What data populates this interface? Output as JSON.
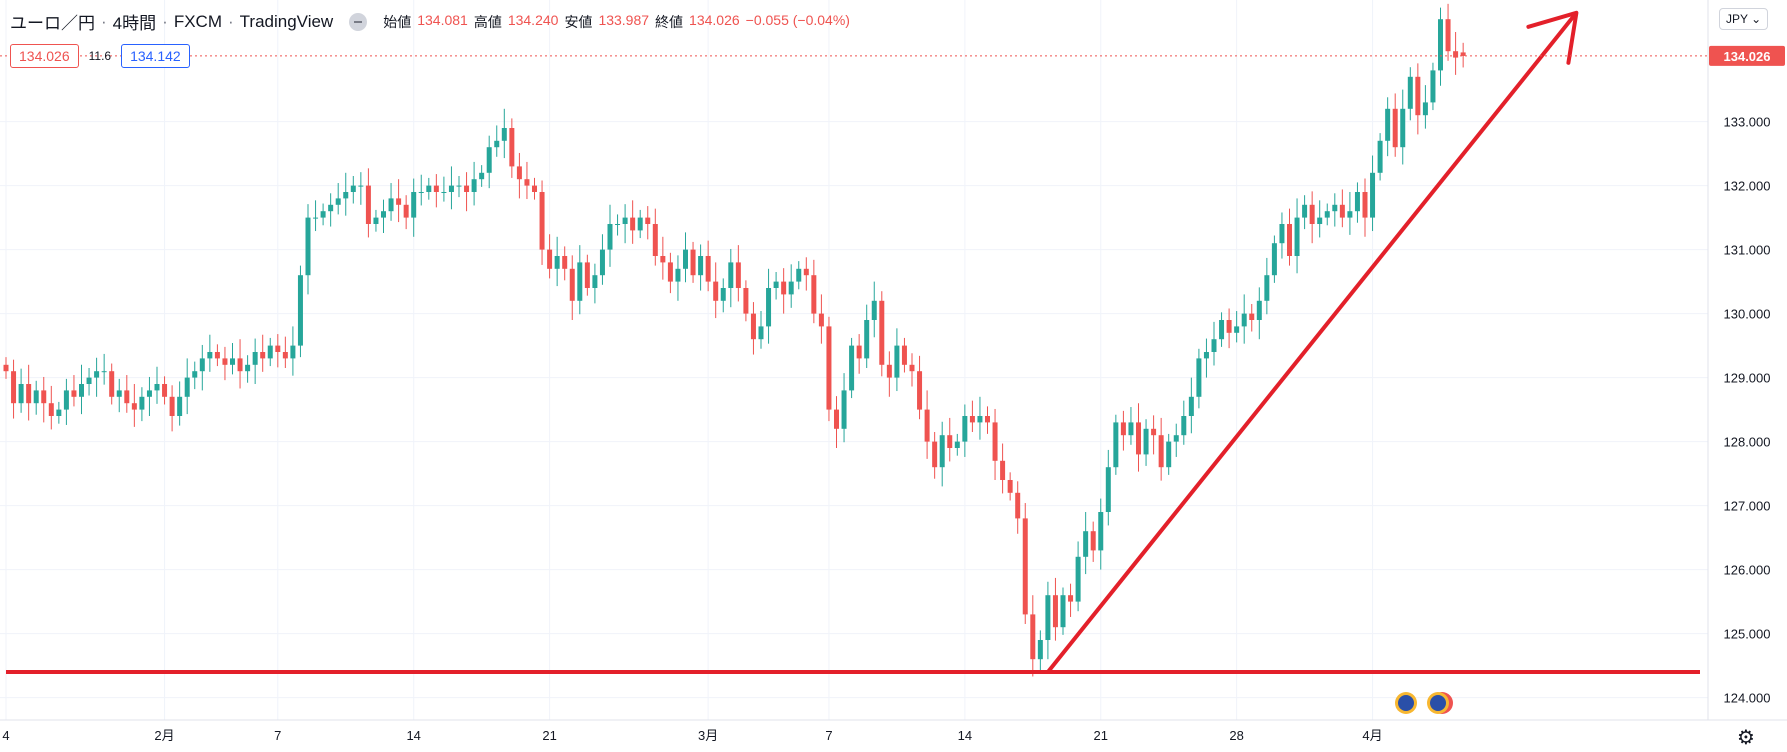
{
  "legend": {
    "symbol": "ユーロ／円",
    "interval": "4時間",
    "exchange": "FXCM",
    "brand": "TradingView",
    "open_label": "始値",
    "open": "134.081",
    "high_label": "高値",
    "high": "134.240",
    "low_label": "安値",
    "low": "133.987",
    "close_label": "終値",
    "close": "134.026",
    "change": "−0.055 (−0.04%)"
  },
  "quote": {
    "sell": "134.026",
    "spread": "11.6",
    "buy": "134.142"
  },
  "currency_button": "JPY",
  "colors": {
    "up": "#26a69a",
    "down": "#ef5350",
    "annotation": "#e3202a",
    "grid": "#f0f3fa"
  },
  "chart_data": {
    "type": "candlestick",
    "ylim": [
      123.65,
      134.9
    ],
    "y_ticks": [
      "124.000",
      "125.000",
      "126.000",
      "127.000",
      "128.000",
      "129.000",
      "130.000",
      "131.000",
      "132.000",
      "133.000"
    ],
    "x_tick_labels": [
      "4",
      "2月",
      "7",
      "14",
      "21",
      "3月",
      "7",
      "14",
      "21",
      "28",
      "4月"
    ],
    "last_price_label": "134.026",
    "series": {
      "name": "EUR/JPY 4h",
      "close": [
        129.1,
        128.6,
        128.9,
        128.6,
        128.8,
        128.6,
        128.4,
        128.5,
        128.8,
        128.7,
        128.9,
        129.0,
        129.1,
        129.1,
        128.7,
        128.8,
        128.6,
        128.5,
        128.7,
        128.8,
        128.9,
        128.7,
        128.4,
        128.7,
        129.0,
        129.1,
        129.3,
        129.4,
        129.3,
        129.2,
        129.3,
        129.1,
        129.2,
        129.4,
        129.3,
        129.5,
        129.4,
        129.3,
        129.5,
        130.6,
        131.5,
        131.5,
        131.6,
        131.7,
        131.8,
        131.9,
        132.0,
        132.0,
        131.4,
        131.5,
        131.6,
        131.8,
        131.7,
        131.5,
        131.9,
        131.9,
        132.0,
        131.9,
        131.9,
        132.0,
        132.0,
        131.9,
        132.1,
        132.2,
        132.6,
        132.7,
        132.9,
        132.3,
        132.1,
        132.0,
        131.9,
        131.0,
        130.7,
        130.9,
        130.7,
        130.2,
        130.8,
        130.4,
        130.6,
        131.0,
        131.4,
        131.4,
        131.5,
        131.3,
        131.5,
        131.4,
        130.9,
        130.8,
        130.5,
        130.7,
        131.0,
        130.6,
        130.9,
        130.5,
        130.2,
        130.4,
        130.8,
        130.4,
        130.0,
        129.6,
        129.8,
        130.4,
        130.5,
        130.3,
        130.5,
        130.7,
        130.6,
        130.0,
        129.8,
        128.5,
        128.2,
        128.8,
        129.5,
        129.3,
        129.9,
        130.2,
        129.2,
        129.0,
        129.5,
        129.2,
        129.1,
        128.5,
        128.0,
        127.6,
        128.1,
        127.9,
        128.0,
        128.4,
        128.3,
        128.4,
        128.3,
        127.7,
        127.4,
        127.2,
        126.8,
        125.3,
        124.6,
        124.9,
        125.6,
        125.1,
        125.6,
        125.5,
        126.2,
        126.6,
        126.3,
        126.9,
        127.6,
        128.3,
        128.1,
        128.3,
        127.8,
        128.2,
        128.1,
        127.6,
        128.0,
        128.1,
        128.4,
        128.7,
        129.3,
        129.4,
        129.6,
        129.9,
        129.7,
        129.8,
        130.0,
        129.9,
        130.2,
        130.6,
        131.1,
        131.4,
        130.9,
        131.5,
        131.7,
        131.4,
        131.5,
        131.6,
        131.7,
        131.5,
        131.6,
        131.9,
        131.5,
        132.2,
        132.7,
        133.2,
        132.6,
        133.2,
        133.7,
        133.1,
        133.3,
        133.8,
        134.6,
        134.1,
        134.0,
        134.026
      ],
      "open": [
        129.2,
        129.1,
        128.6,
        128.9,
        128.6,
        128.8,
        128.6,
        128.4,
        128.5,
        128.8,
        128.7,
        128.9,
        129.0,
        129.1,
        129.1,
        128.7,
        128.8,
        128.6,
        128.5,
        128.7,
        128.8,
        128.9,
        128.7,
        128.4,
        128.7,
        129.0,
        129.1,
        129.3,
        129.4,
        129.3,
        129.2,
        129.3,
        129.1,
        129.2,
        129.4,
        129.3,
        129.5,
        129.4,
        129.3,
        129.5,
        130.6,
        131.5,
        131.5,
        131.6,
        131.7,
        131.8,
        131.9,
        132.0,
        132.0,
        131.4,
        131.5,
        131.6,
        131.8,
        131.7,
        131.5,
        131.9,
        131.9,
        132.0,
        131.9,
        131.9,
        132.0,
        132.0,
        131.9,
        132.1,
        132.2,
        132.6,
        132.7,
        132.9,
        132.3,
        132.1,
        132.0,
        131.9,
        131.0,
        130.7,
        130.9,
        130.7,
        130.2,
        130.8,
        130.4,
        130.6,
        131.0,
        131.4,
        131.4,
        131.5,
        131.3,
        131.5,
        131.4,
        130.9,
        130.8,
        130.5,
        130.7,
        131.0,
        130.6,
        130.9,
        130.5,
        130.2,
        130.4,
        130.8,
        130.4,
        130.0,
        129.6,
        129.8,
        130.4,
        130.5,
        130.3,
        130.5,
        130.7,
        130.6,
        130.0,
        129.8,
        128.5,
        128.2,
        128.8,
        129.5,
        129.3,
        129.9,
        130.2,
        129.2,
        129.0,
        129.5,
        129.2,
        129.1,
        128.5,
        128.0,
        127.6,
        128.1,
        127.9,
        128.0,
        128.4,
        128.3,
        128.4,
        128.3,
        127.7,
        127.4,
        127.2,
        126.8,
        125.3,
        124.6,
        124.9,
        125.6,
        125.1,
        125.6,
        125.5,
        126.2,
        126.6,
        126.3,
        126.9,
        127.6,
        128.3,
        128.1,
        128.3,
        127.8,
        128.2,
        128.1,
        127.6,
        128.0,
        128.1,
        128.4,
        128.7,
        129.3,
        129.4,
        129.6,
        129.9,
        129.7,
        129.8,
        130.0,
        129.9,
        130.2,
        130.6,
        131.1,
        131.4,
        130.9,
        131.5,
        131.7,
        131.4,
        131.5,
        131.6,
        131.7,
        131.5,
        131.6,
        131.9,
        131.5,
        132.2,
        132.7,
        133.2,
        132.6,
        133.2,
        133.7,
        133.1,
        133.3,
        133.8,
        134.6,
        134.1,
        134.081
      ]
    },
    "annotations": [
      {
        "type": "horizontal_line",
        "price": 124.4,
        "color": "#e3202a"
      },
      {
        "type": "arrow",
        "from": [
          138,
          124.4
        ],
        "to": [
          208,
          134.7
        ],
        "color": "#e3202a"
      }
    ]
  }
}
